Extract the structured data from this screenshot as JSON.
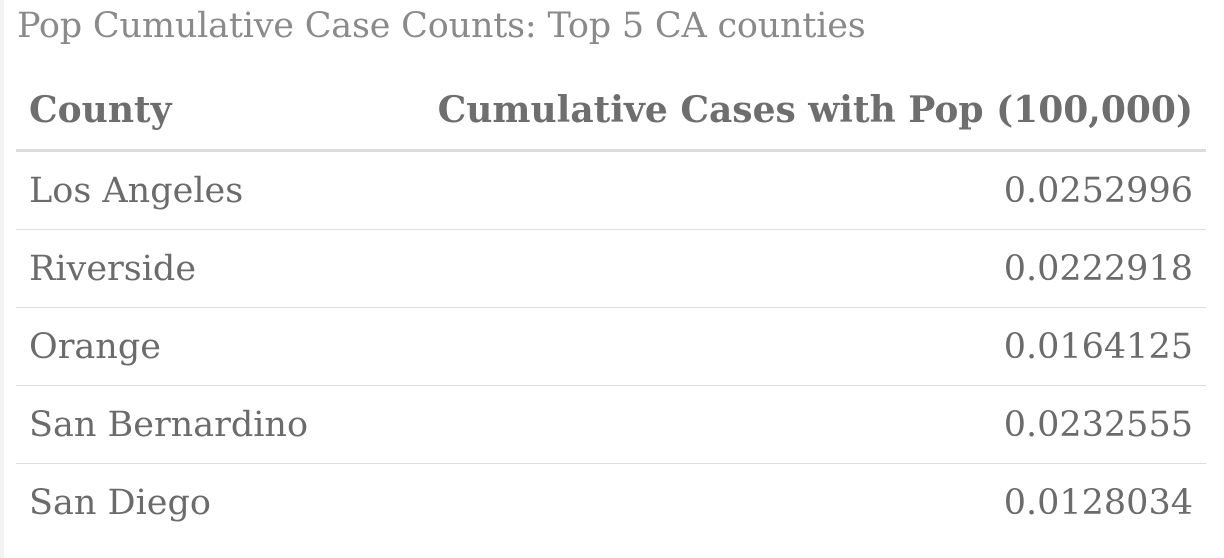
{
  "chart_data": {
    "type": "table",
    "title": "Pop Cumulative Case Counts: Top 5 CA counties",
    "columns": [
      "County",
      "Cumulative Cases with Pop (100,000)"
    ],
    "rows": [
      {
        "county": "Los Angeles",
        "value": "0.0252996"
      },
      {
        "county": "Riverside",
        "value": "0.0222918"
      },
      {
        "county": "Orange",
        "value": "0.0164125"
      },
      {
        "county": "San Bernardino",
        "value": "0.0232555"
      },
      {
        "county": "San Diego",
        "value": "0.0128034"
      }
    ]
  }
}
